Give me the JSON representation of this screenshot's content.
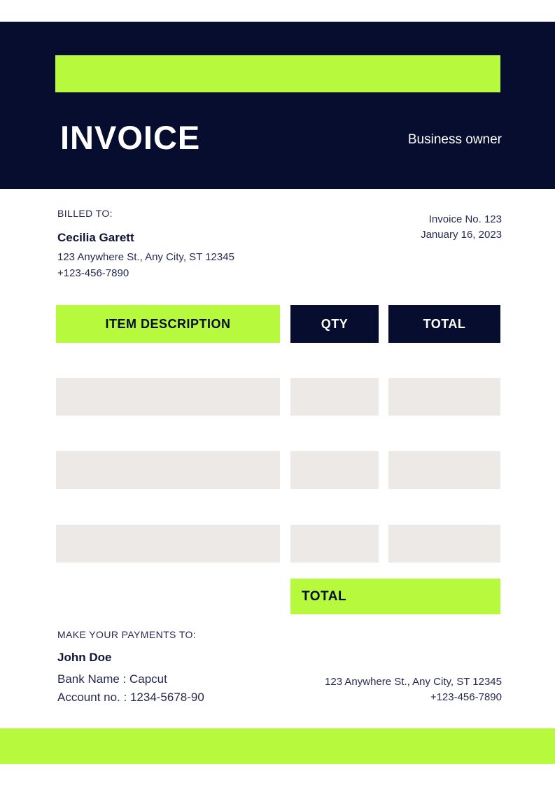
{
  "header": {
    "title": "INVOICE",
    "subtitle": "Business owner"
  },
  "billed_to": {
    "label": "BILLED TO:",
    "name": "Cecilia Garett",
    "address": "123 Anywhere St., Any City, ST 12345",
    "phone": "+123-456-7890"
  },
  "invoice_meta": {
    "number": "Invoice No. 123",
    "date": "January 16, 2023"
  },
  "table": {
    "headers": {
      "description": "ITEM DESCRIPTION",
      "qty": "QTY",
      "total": "TOTAL"
    },
    "rows": [
      {
        "description": "",
        "qty": "",
        "total": ""
      },
      {
        "description": "",
        "qty": "",
        "total": ""
      },
      {
        "description": "",
        "qty": "",
        "total": ""
      }
    ],
    "total_label": "TOTAL",
    "total_value": ""
  },
  "payment": {
    "label": "MAKE YOUR PAYMENTS TO:",
    "payee": "John Doe",
    "bank": "Bank Name : Capcut",
    "account": "Account no. : 1234-5678-90"
  },
  "footer_contact": {
    "address": "123 Anywhere St., Any City, ST 12345",
    "phone": "+123-456-7890"
  },
  "colors": {
    "navy": "#070d2e",
    "lime": "#b7fa3d",
    "row_gray": "#ece9e7",
    "text": "#262a52"
  }
}
